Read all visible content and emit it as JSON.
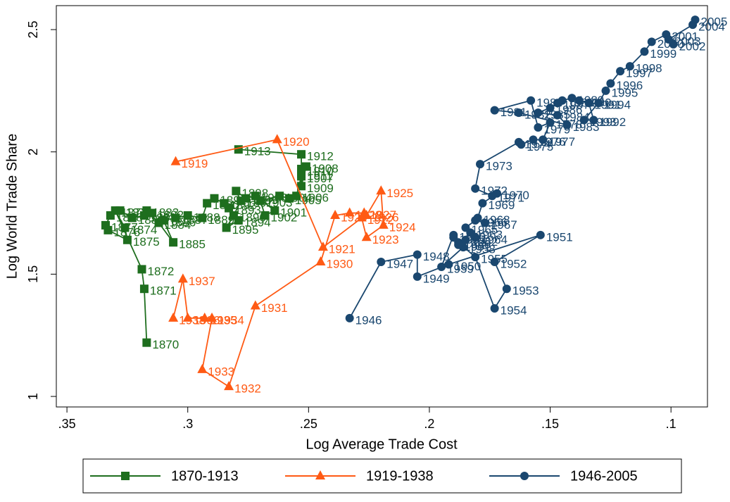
{
  "chart_data": {
    "type": "scatter",
    "connected": true,
    "x_label": "Log Average Trade Cost",
    "y_label": "Log World Trade Share",
    "xlim": [
      0.3544,
      0.0849
    ],
    "ylim": [
      0.957,
      2.598
    ],
    "xticks": [
      {
        "value": 0.35,
        "label": ".35"
      },
      {
        "value": 0.3,
        "label": ".3"
      },
      {
        "value": 0.25,
        "label": ".25"
      },
      {
        "value": 0.2,
        "label": ".2"
      },
      {
        "value": 0.15,
        "label": ".15"
      },
      {
        "value": 0.1,
        "label": ".1"
      }
    ],
    "yticks": [
      1,
      1.5,
      2,
      2.5
    ],
    "legend_position": "bottom",
    "series": [
      {
        "name": "1870-1913",
        "color": "#1e6e1e",
        "marker": "square",
        "labels": [
          "1870",
          "1871",
          "1872",
          "1873",
          "1874",
          "1875",
          "1876",
          "1877",
          "1878",
          "1879",
          "1880",
          "1881",
          "1882",
          "1883",
          "1884",
          "1885",
          "1886",
          "1887",
          "1888",
          "1889",
          "1890",
          "1891",
          "1892",
          "1893",
          "1894",
          "1895",
          "1896",
          "1897",
          "1898",
          "1899",
          "1900",
          "1901",
          "1902",
          "1903",
          "1904",
          "1905",
          "1906",
          "1907",
          "1908",
          "1909",
          "1910",
          "1911",
          "1912",
          "1913"
        ],
        "x": [
          0.317,
          0.318,
          0.319,
          0.33,
          0.326,
          0.325,
          0.333,
          0.334,
          0.332,
          0.328,
          0.323,
          0.318,
          0.315,
          0.317,
          0.312,
          0.306,
          0.31,
          0.305,
          0.3,
          0.294,
          0.292,
          0.289,
          0.285,
          0.283,
          0.279,
          0.284,
          0.281,
          0.278,
          0.28,
          0.276,
          0.272,
          0.264,
          0.268,
          0.27,
          0.262,
          0.258,
          0.255,
          0.253,
          0.251,
          0.253,
          0.253,
          0.253,
          0.253,
          0.279
        ],
        "y": [
          1.22,
          1.44,
          1.52,
          1.76,
          1.69,
          1.64,
          1.68,
          1.7,
          1.74,
          1.76,
          1.73,
          1.74,
          1.75,
          1.76,
          1.71,
          1.63,
          1.72,
          1.73,
          1.74,
          1.73,
          1.79,
          1.81,
          1.79,
          1.77,
          1.72,
          1.69,
          1.74,
          1.8,
          1.84,
          1.81,
          1.82,
          1.76,
          1.74,
          1.8,
          1.82,
          1.81,
          1.82,
          1.9,
          1.94,
          1.86,
          1.93,
          1.91,
          1.99,
          2.01
        ]
      },
      {
        "name": "1919-1938",
        "color": "#ff5a14",
        "marker": "triangle",
        "labels": [
          "1919",
          "1920",
          "1921",
          "1922",
          "1923",
          "1924",
          "1925",
          "1926",
          "1927",
          "1928",
          "1929",
          "1930",
          "1931",
          "1932",
          "1933",
          "1934",
          "1935",
          "1936",
          "1937",
          "1938"
        ],
        "x": [
          0.305,
          0.263,
          0.244,
          0.228,
          0.226,
          0.219,
          0.22,
          0.226,
          0.227,
          0.233,
          0.239,
          0.245,
          0.272,
          0.283,
          0.294,
          0.29,
          0.293,
          0.3,
          0.302,
          0.306
        ],
        "y": [
          1.96,
          2.05,
          1.61,
          1.73,
          1.65,
          1.7,
          1.84,
          1.74,
          1.75,
          1.75,
          1.74,
          1.55,
          1.37,
          1.04,
          1.11,
          1.32,
          1.32,
          1.32,
          1.48,
          1.32
        ]
      },
      {
        "name": "1946-2005",
        "color": "#1a476f",
        "marker": "circle",
        "labels": [
          "1946",
          "1947",
          "1948",
          "1949",
          "1950",
          "1951",
          "1952",
          "1953",
          "1954",
          "1955",
          "1956",
          "1957",
          "1958",
          "1959",
          "1960",
          "1961",
          "1962",
          "1963",
          "1964",
          "1965",
          "1966",
          "1967",
          "1968",
          "1969",
          "1970",
          "1971",
          "1972",
          "1973",
          "1974",
          "1975",
          "1976",
          "1977",
          "1978",
          "1979",
          "1980",
          "1981",
          "1982",
          "1983",
          "1984",
          "1985",
          "1986",
          "1987",
          "1988",
          "1989",
          "1990",
          "1991",
          "1992",
          "1993",
          "1994",
          "1995",
          "1996",
          "1997",
          "1998",
          "1999",
          "2000",
          "2001",
          "2002",
          "2003",
          "2004",
          "2005"
        ],
        "x": [
          0.233,
          0.22,
          0.205,
          0.205,
          0.192,
          0.154,
          0.173,
          0.168,
          0.173,
          0.181,
          0.188,
          0.19,
          0.186,
          0.195,
          0.19,
          0.188,
          0.185,
          0.183,
          0.181,
          0.185,
          0.181,
          0.177,
          0.18,
          0.178,
          0.172,
          0.174,
          0.181,
          0.179,
          0.163,
          0.162,
          0.157,
          0.153,
          0.15,
          0.155,
          0.158,
          0.173,
          0.163,
          0.143,
          0.147,
          0.155,
          0.15,
          0.147,
          0.145,
          0.141,
          0.138,
          0.134,
          0.132,
          0.136,
          0.13,
          0.127,
          0.125,
          0.121,
          0.117,
          0.111,
          0.108,
          0.102,
          0.099,
          0.101,
          0.091,
          0.09
        ],
        "y": [
          1.32,
          1.55,
          1.58,
          1.49,
          1.54,
          1.66,
          1.55,
          1.44,
          1.36,
          1.57,
          1.63,
          1.65,
          1.61,
          1.53,
          1.66,
          1.62,
          1.64,
          1.67,
          1.65,
          1.69,
          1.72,
          1.71,
          1.73,
          1.79,
          1.83,
          1.82,
          1.85,
          1.95,
          2.04,
          2.03,
          2.05,
          2.05,
          2.12,
          2.1,
          2.21,
          2.17,
          2.16,
          2.11,
          2.15,
          2.16,
          2.18,
          2.2,
          2.21,
          2.22,
          2.21,
          2.2,
          2.13,
          2.13,
          2.2,
          2.25,
          2.28,
          2.33,
          2.35,
          2.41,
          2.45,
          2.48,
          2.44,
          2.46,
          2.52,
          2.54
        ]
      }
    ]
  }
}
